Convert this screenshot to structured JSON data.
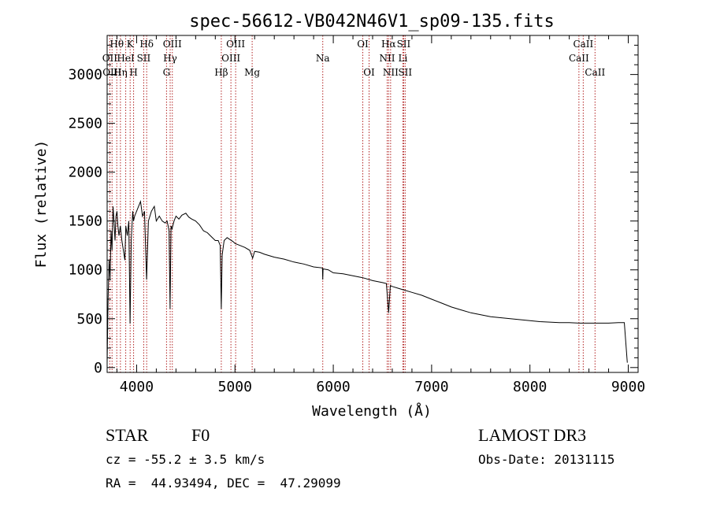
{
  "chart_data": {
    "type": "line",
    "title": "spec-56612-VB042N46V1_sp09-135.fits",
    "xlabel": "Wavelength (Å)",
    "ylabel": "Flux (relative)",
    "xlim": [
      3700,
      9100
    ],
    "ylim": [
      -50,
      3400
    ],
    "xticks": [
      4000,
      5000,
      6000,
      7000,
      8000,
      9000
    ],
    "yticks": [
      0,
      500,
      1000,
      1500,
      2000,
      2500,
      3000
    ],
    "minor_x_step": 200,
    "minor_y_step": 100,
    "line_color": "#000000",
    "marker_color": "#b22222",
    "series": [
      {
        "name": "spectrum",
        "x": [
          3700,
          3710,
          3720,
          3730,
          3740,
          3750,
          3760,
          3770,
          3780,
          3790,
          3800,
          3810,
          3820,
          3835,
          3850,
          3865,
          3880,
          3890,
          3905,
          3920,
          3933,
          3945,
          3960,
          3968,
          3980,
          4000,
          4020,
          4040,
          4060,
          4080,
          4101,
          4120,
          4150,
          4180,
          4200,
          4230,
          4260,
          4290,
          4310,
          4320,
          4330,
          4340,
          4350,
          4360,
          4380,
          4400,
          4430,
          4460,
          4500,
          4530,
          4560,
          4600,
          4640,
          4680,
          4720,
          4760,
          4800,
          4830,
          4850,
          4861,
          4870,
          4890,
          4920,
          4950,
          4980,
          5000,
          5050,
          5100,
          5150,
          5180,
          5200,
          5250,
          5300,
          5400,
          5500,
          5600,
          5700,
          5800,
          5890,
          5893,
          5896,
          5950,
          6000,
          6100,
          6200,
          6300,
          6400,
          6500,
          6540,
          6563,
          6580,
          6600,
          6700,
          6800,
          6900,
          7000,
          7100,
          7200,
          7300,
          7400,
          7500,
          7600,
          7700,
          7800,
          7900,
          8000,
          8100,
          8200,
          8300,
          8400,
          8500,
          8600,
          8700,
          8800,
          8900,
          8960,
          8990
        ],
        "y": [
          50,
          700,
          1100,
          900,
          1400,
          1200,
          1650,
          1500,
          1300,
          1550,
          1600,
          1450,
          1350,
          1450,
          1300,
          1200,
          1100,
          1450,
          1350,
          1500,
          450,
          1300,
          1600,
          1500,
          1550,
          1600,
          1650,
          1700,
          1550,
          1600,
          900,
          1500,
          1600,
          1650,
          1500,
          1550,
          1500,
          1480,
          1500,
          1450,
          1400,
          600,
          1450,
          1420,
          1500,
          1550,
          1520,
          1560,
          1580,
          1540,
          1520,
          1500,
          1460,
          1400,
          1380,
          1340,
          1300,
          1300,
          1250,
          600,
          1150,
          1300,
          1330,
          1310,
          1290,
          1270,
          1250,
          1230,
          1200,
          1120,
          1190,
          1180,
          1160,
          1130,
          1110,
          1080,
          1060,
          1030,
          1020,
          900,
          1010,
          1000,
          970,
          960,
          940,
          920,
          890,
          870,
          860,
          560,
          840,
          830,
          800,
          770,
          740,
          700,
          660,
          620,
          590,
          560,
          540,
          520,
          510,
          500,
          490,
          480,
          470,
          465,
          460,
          460,
          455,
          455,
          455,
          455,
          460,
          460,
          50
        ]
      }
    ],
    "lines": [
      {
        "label": "Hθ",
        "wave": 3798,
        "row": 1
      },
      {
        "label": "OII",
        "wave": 3727,
        "row": 2
      },
      {
        "label": "OIII",
        "wave": 3750,
        "row": 3
      },
      {
        "label": "Hη",
        "wave": 3835,
        "row": 3
      },
      {
        "label": "K",
        "wave": 3934,
        "row": 1
      },
      {
        "label": "HeI",
        "wave": 3889,
        "row": 2
      },
      {
        "label": "H",
        "wave": 3969,
        "row": 3
      },
      {
        "label": "Hδ",
        "wave": 4102,
        "row": 1
      },
      {
        "label": "SII",
        "wave": 4072,
        "row": 2
      },
      {
        "label": "OIII",
        "wave": 4363,
        "row": 1
      },
      {
        "label": "Hγ",
        "wave": 4341,
        "row": 2
      },
      {
        "label": "G",
        "wave": 4304,
        "row": 3
      },
      {
        "label": "Hβ",
        "wave": 4861,
        "row": 3
      },
      {
        "label": "OIII",
        "wave": 5007,
        "row": 1
      },
      {
        "label": "OIII",
        "wave": 4959,
        "row": 2
      },
      {
        "label": "Mg",
        "wave": 5175,
        "row": 3
      },
      {
        "label": "Na",
        "wave": 5893,
        "row": 2
      },
      {
        "label": "OI",
        "wave": 6300,
        "row": 1
      },
      {
        "label": "OI",
        "wave": 6364,
        "row": 3
      },
      {
        "label": "Hα",
        "wave": 6563,
        "row": 1
      },
      {
        "label": "NII",
        "wave": 6548,
        "row": 2
      },
      {
        "label": "NII",
        "wave": 6583,
        "row": 3
      },
      {
        "label": "SII",
        "wave": 6716,
        "row": 1
      },
      {
        "label": "Li",
        "wave": 6708,
        "row": 2
      },
      {
        "label": "SII",
        "wave": 6731,
        "row": 3
      },
      {
        "label": "CaII",
        "wave": 8542,
        "row": 1
      },
      {
        "label": "CaII",
        "wave": 8498,
        "row": 2
      },
      {
        "label": "CaII",
        "wave": 8662,
        "row": 3
      }
    ]
  },
  "info": {
    "object_class": "STAR",
    "subclass": "F0",
    "survey": "LAMOST DR3",
    "redshift": "cz = -55.2 ± 3.5 km/s",
    "obs_date": "Obs-Date: 20131115",
    "coords": "RA =  44.93494, DEC =  47.29099"
  }
}
